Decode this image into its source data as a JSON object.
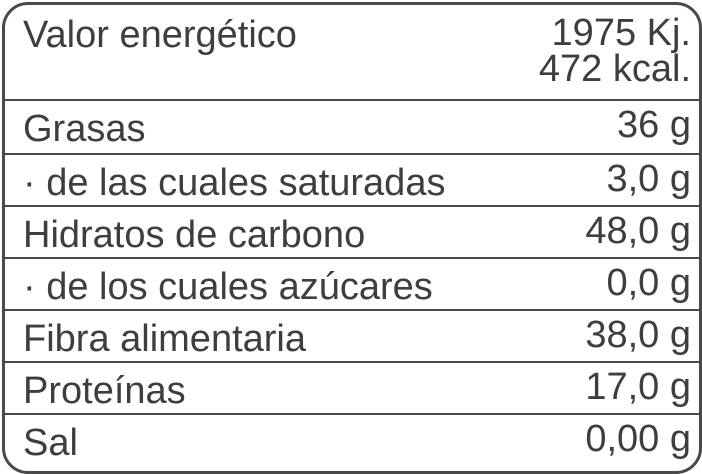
{
  "table": {
    "rows": [
      {
        "label": "Valor energético",
        "value": [
          "1975 Kj.",
          "472 kcal."
        ]
      },
      {
        "label": "Grasas",
        "value": [
          "36 g"
        ]
      },
      {
        "label": "· de las cuales saturadas",
        "value": [
          "3,0 g"
        ]
      },
      {
        "label": "Hidratos de carbono",
        "value": [
          "48,0 g"
        ]
      },
      {
        "label": "· de los cuales azúcares",
        "value": [
          "0,0 g"
        ]
      },
      {
        "label": "Fibra alimentaria",
        "value": [
          "38,0 g"
        ]
      },
      {
        "label": "Proteínas",
        "value": [
          "17,0 g"
        ]
      },
      {
        "label": "Sal",
        "value": [
          "0,00 g"
        ]
      }
    ]
  }
}
